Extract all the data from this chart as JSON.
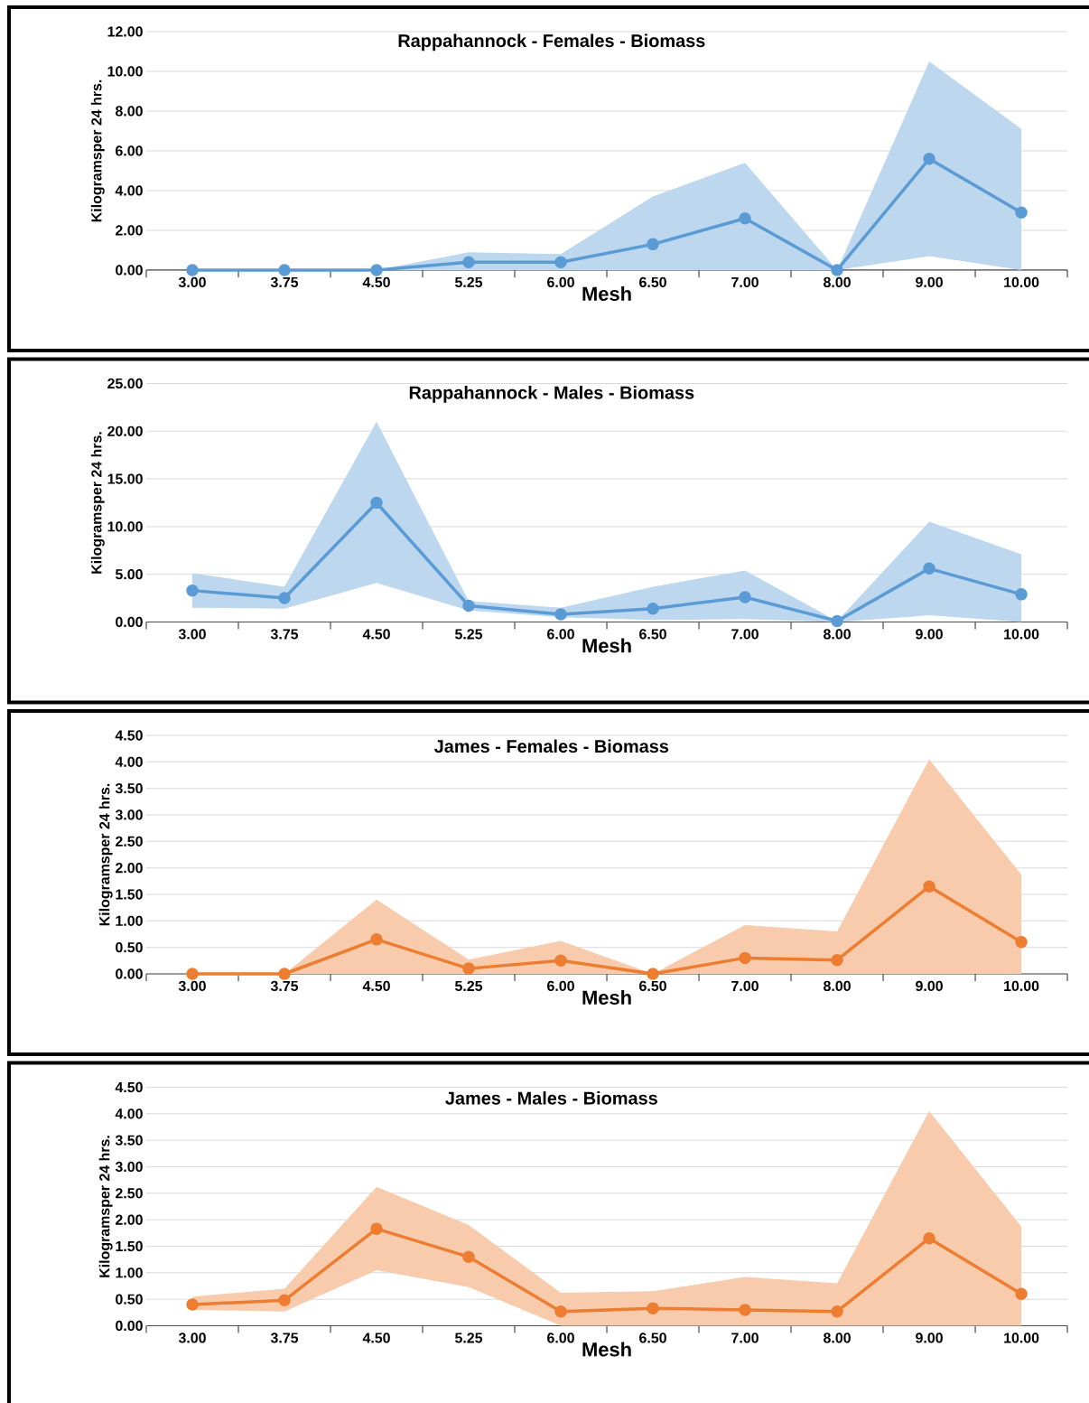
{
  "chart_data": [
    {
      "type": "line",
      "title": "Rappahannock - Females - Biomass",
      "xlabel": "Mesh",
      "ylabel": "Kilogramsper 24 hrs.",
      "categories": [
        "3.00",
        "3.75",
        "4.50",
        "5.25",
        "6.00",
        "6.50",
        "7.00",
        "8.00",
        "9.00",
        "10.00"
      ],
      "series": [
        {
          "color": "#5b9bd5",
          "values": [
            0,
            0,
            0,
            0.4,
            0.4,
            1.3,
            2.6,
            0,
            5.6,
            2.9
          ],
          "lower": [
            0,
            0,
            0,
            0,
            0,
            0,
            0,
            0,
            0.7,
            0
          ],
          "upper": [
            0,
            0,
            0,
            0.9,
            0.8,
            3.7,
            5.4,
            0,
            10.5,
            7.1
          ]
        }
      ],
      "ylim": [
        0,
        12
      ],
      "yticks": [
        {
          "value": 0,
          "label": "0.00"
        },
        {
          "value": 2,
          "label": "2.00"
        },
        {
          "value": 4,
          "label": "4.00"
        },
        {
          "value": 6,
          "label": "6.00"
        },
        {
          "value": 8,
          "label": "8.00"
        },
        {
          "value": 10,
          "label": "10.00"
        },
        {
          "value": 12,
          "label": "12.00"
        }
      ],
      "grid": "y",
      "marker": "circle"
    },
    {
      "type": "line",
      "title": "Rappahannock - Males - Biomass",
      "xlabel": "Mesh",
      "ylabel": "Kilogramsper 24 hrs.",
      "categories": [
        "3.00",
        "3.75",
        "4.50",
        "5.25",
        "6.00",
        "6.50",
        "7.00",
        "8.00",
        "9.00",
        "10.00"
      ],
      "series": [
        {
          "color": "#5b9bd5",
          "values": [
            3.3,
            2.5,
            12.5,
            1.7,
            0.8,
            1.4,
            2.6,
            0.1,
            5.6,
            2.9
          ],
          "lower": [
            1.5,
            1.4,
            4.1,
            1.2,
            0.5,
            0.2,
            0.3,
            0,
            0.7,
            0
          ],
          "upper": [
            5.1,
            3.7,
            21,
            2.2,
            1.5,
            3.7,
            5.4,
            0.1,
            10.5,
            7.1
          ]
        }
      ],
      "ylim": [
        0,
        25
      ],
      "yticks": [
        {
          "value": 0,
          "label": "0.00"
        },
        {
          "value": 5,
          "label": "5.00"
        },
        {
          "value": 10,
          "label": "10.00"
        },
        {
          "value": 15,
          "label": "15.00"
        },
        {
          "value": 20,
          "label": "20.00"
        },
        {
          "value": 25,
          "label": "25.00"
        }
      ],
      "grid": "y",
      "marker": "circle"
    },
    {
      "type": "line",
      "title": "James - Females - Biomass",
      "xlabel": "Mesh",
      "ylabel": "Kilogramsper 24 hrs.",
      "categories": [
        "3.00",
        "3.75",
        "4.50",
        "5.25",
        "6.00",
        "6.50",
        "7.00",
        "8.00",
        "9.00",
        "10.00"
      ],
      "series": [
        {
          "color": "#ed7d31",
          "values": [
            0,
            0,
            0.65,
            0.1,
            0.25,
            0,
            0.3,
            0.26,
            1.65,
            0.6
          ],
          "lower": [
            0,
            0,
            0,
            0,
            0,
            0,
            0,
            0,
            0,
            0
          ],
          "upper": [
            0,
            0,
            1.4,
            0.27,
            0.62,
            0,
            0.92,
            0.8,
            4.05,
            1.87
          ]
        }
      ],
      "ylim": [
        0,
        4.5
      ],
      "yticks": [
        {
          "value": 0,
          "label": "0.00"
        },
        {
          "value": 0.5,
          "label": "0.50"
        },
        {
          "value": 1,
          "label": "1.00"
        },
        {
          "value": 1.5,
          "label": "1.50"
        },
        {
          "value": 2,
          "label": "2.00"
        },
        {
          "value": 2.5,
          "label": "2.50"
        },
        {
          "value": 3,
          "label": "3.00"
        },
        {
          "value": 3.5,
          "label": "3.50"
        },
        {
          "value": 4,
          "label": "4.00"
        },
        {
          "value": 4.5,
          "label": "4.50"
        }
      ],
      "grid": "y",
      "marker": "circle"
    },
    {
      "type": "line",
      "title": "James - Males - Biomass",
      "xlabel": "Mesh",
      "ylabel": "Kilogramsper 24 hrs.",
      "categories": [
        "3.00",
        "3.75",
        "4.50",
        "5.25",
        "6.00",
        "6.50",
        "7.00",
        "8.00",
        "9.00",
        "10.00"
      ],
      "series": [
        {
          "color": "#ed7d31",
          "values": [
            0.4,
            0.48,
            1.83,
            1.3,
            0.27,
            0.33,
            0.3,
            0.27,
            1.65,
            0.6
          ],
          "lower": [
            0.3,
            0.27,
            1.05,
            0.73,
            0,
            0,
            0,
            0,
            0,
            0
          ],
          "upper": [
            0.55,
            0.7,
            2.62,
            1.9,
            0.62,
            0.65,
            0.92,
            0.8,
            4.05,
            1.87
          ]
        }
      ],
      "ylim": [
        0,
        4.5
      ],
      "yticks": [
        {
          "value": 0,
          "label": "0.00"
        },
        {
          "value": 0.5,
          "label": "0.50"
        },
        {
          "value": 1,
          "label": "1.00"
        },
        {
          "value": 1.5,
          "label": "1.50"
        },
        {
          "value": 2,
          "label": "2.00"
        },
        {
          "value": 2.5,
          "label": "2.50"
        },
        {
          "value": 3,
          "label": "3.00"
        },
        {
          "value": 3.5,
          "label": "3.50"
        },
        {
          "value": 4,
          "label": "4.00"
        },
        {
          "value": 4.5,
          "label": "4.50"
        }
      ],
      "grid": "y",
      "marker": "circle"
    }
  ]
}
